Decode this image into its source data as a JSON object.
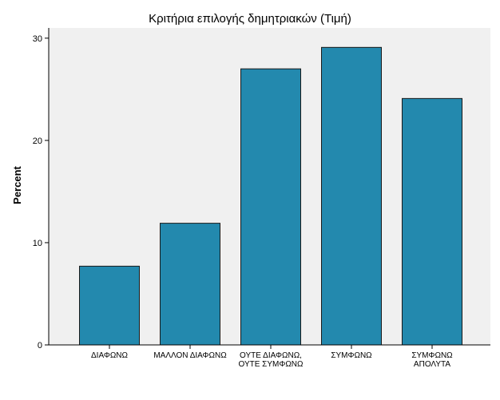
{
  "chart_data": {
    "type": "bar",
    "title": "Κριτήρια επιλογής δημητριακών (Τιμή)",
    "xlabel": "",
    "ylabel": "Percent",
    "categories": [
      [
        "ΔΙΑΦΩΝΩ"
      ],
      [
        "ΜΑΛΛΟΝ ΔΙΑΦΩΝΩ"
      ],
      [
        "ΟΥΤΕ ΔΙΑΦΩΝΩ,",
        "ΟΥΤΕ ΣΥΜΦΩΝΩ"
      ],
      [
        "ΣΥΜΦΩΝΩ"
      ],
      [
        "ΣΥΜΦΩΝΩ",
        "ΑΠΟΛΥΤΑ"
      ]
    ],
    "values": [
      7.7,
      11.9,
      27.0,
      29.1,
      24.1
    ],
    "ylim": [
      0,
      31
    ],
    "yticks": [
      0,
      10,
      20,
      30
    ],
    "grid": false,
    "colors": {
      "bar_fill": "#2389ae",
      "bar_stroke": "#1a1a1a",
      "plot_bg": "#f0f0f0",
      "axis": "#000000"
    }
  }
}
